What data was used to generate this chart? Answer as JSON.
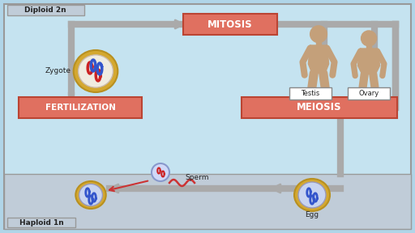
{
  "bg_outer": "#b0d5e8",
  "bg_diploid": "#c5e3f0",
  "bg_haploid": "#c0ccd8",
  "border_color": "#999999",
  "label_diploid": "Diploid 2n",
  "label_haploid": "Haploid 1n",
  "mitosis_label": "MITOSIS",
  "meiosis_label": "MEIOSIS",
  "fertilization_label": "FERTILIZATION",
  "box_color": "#e07060",
  "testis_label": "Testis",
  "ovary_label": "Ovary",
  "zygote_label": "Zygote",
  "sperm_label": "Sperm",
  "egg_label": "Egg",
  "body_color": "#c4a07a",
  "line_color": "#aaaaaa",
  "cell_outer_color": "#d4a830",
  "cell_zygote_inner": "#f0ece0",
  "cell_haploid_inner": "#c8d4f0",
  "chr_red": "#cc2222",
  "chr_blue": "#3355cc"
}
